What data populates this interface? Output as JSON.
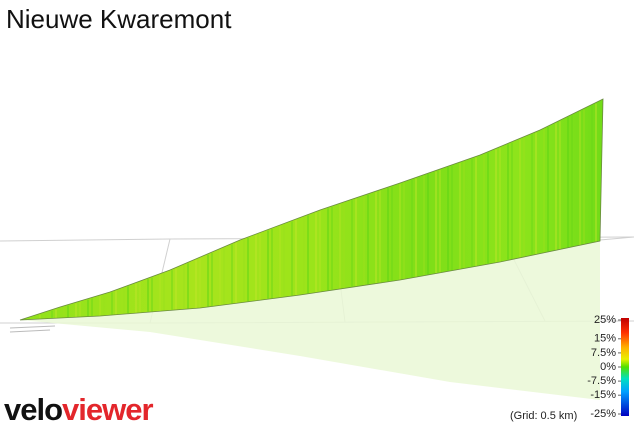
{
  "header": {
    "title": "Nieuwe Kwaremont"
  },
  "color_scale": {
    "ticks": [
      {
        "value": 25,
        "label": "25%"
      },
      {
        "value": 15,
        "label": "15%"
      },
      {
        "value": 7.5,
        "label": "7.5%"
      },
      {
        "value": 0,
        "label": "0%"
      },
      {
        "value": -7.5,
        "label": "-7.5%"
      },
      {
        "value": -15,
        "label": "-15%"
      },
      {
        "value": -25,
        "label": "-25%"
      }
    ]
  },
  "grid_note": "(Grid: 0.5 km)",
  "logo": {
    "part1": "velo",
    "part2": "viewer"
  }
}
